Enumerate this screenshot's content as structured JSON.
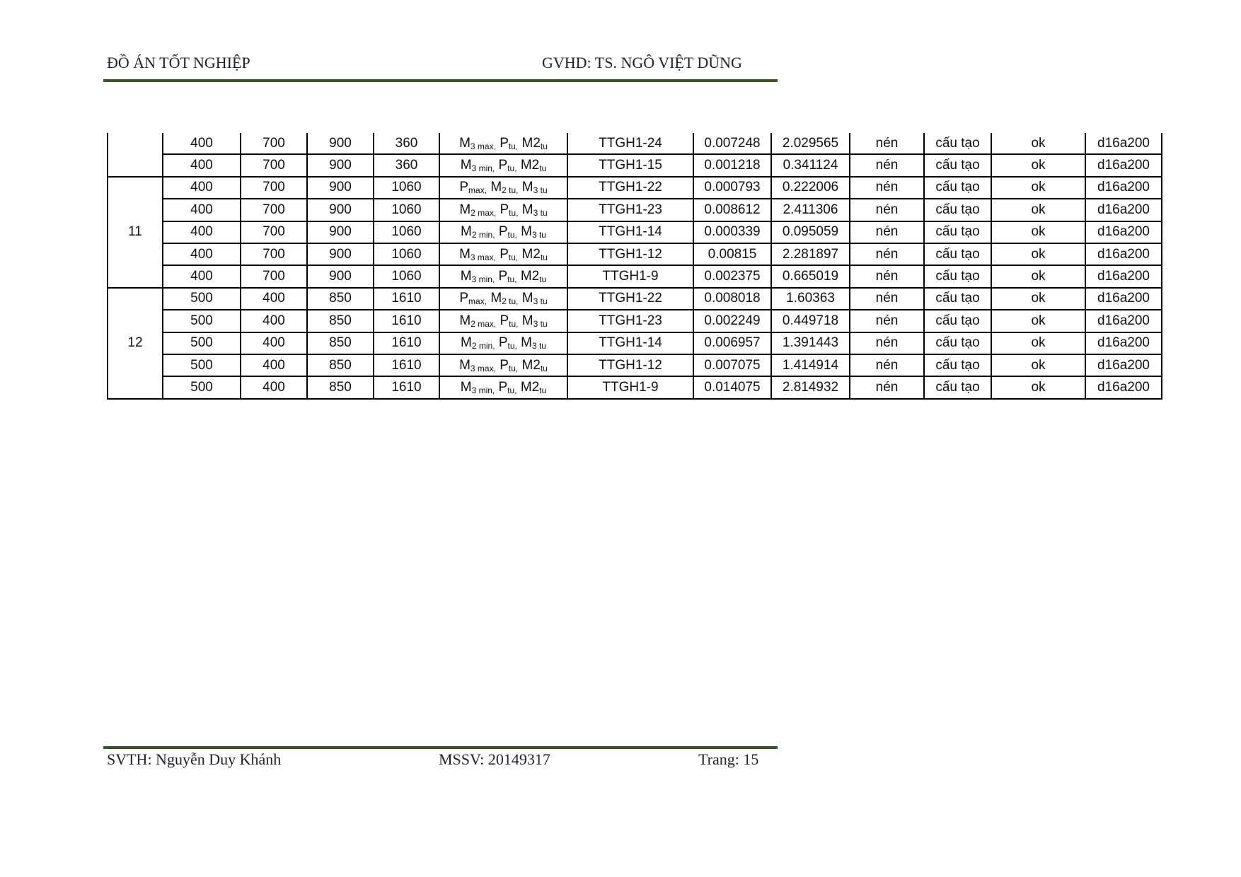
{
  "header": {
    "left": "ĐỒ ÁN TỐT NGHIỆP",
    "right": "GVHD: TS. NGÔ VIỆT DŨNG"
  },
  "footer": {
    "student": "SVTH: Nguyễn Duy Khánh",
    "id": "MSSV: 20149317",
    "page": "Trang: 15"
  },
  "colors": {
    "rule": "#3d5526"
  },
  "table": {
    "groups": [
      {
        "label": "",
        "rows": [
          [
            "400",
            "700",
            "900",
            "360",
            [
              [
                "M",
                "3 max,"
              ],
              [
                "P",
                "tu,"
              ],
              [
                "M2",
                "tu"
              ]
            ],
            "TTGH1-24",
            "0.007248",
            "2.029565",
            "nén",
            "cấu tạo",
            "ok",
            "d16a200"
          ],
          [
            "400",
            "700",
            "900",
            "360",
            [
              [
                "M",
                "3 min,"
              ],
              [
                "P",
                "tu,"
              ],
              [
                "M2",
                "tu"
              ]
            ],
            "TTGH1-15",
            "0.001218",
            "0.341124",
            "nén",
            "cấu tạo",
            "ok",
            "d16a200"
          ]
        ]
      },
      {
        "label": "11",
        "rows": [
          [
            "400",
            "700",
            "900",
            "1060",
            [
              [
                "P",
                "max,"
              ],
              [
                "M",
                "2 tu,"
              ],
              [
                "M",
                "3 tu"
              ]
            ],
            "TTGH1-22",
            "0.000793",
            "0.222006",
            "nén",
            "cấu tạo",
            "ok",
            "d16a200"
          ],
          [
            "400",
            "700",
            "900",
            "1060",
            [
              [
                "M",
                "2 max,"
              ],
              [
                "P",
                "tu,"
              ],
              [
                "M",
                "3 tu"
              ]
            ],
            "TTGH1-23",
            "0.008612",
            "2.411306",
            "nén",
            "cấu tạo",
            "ok",
            "d16a200"
          ],
          [
            "400",
            "700",
            "900",
            "1060",
            [
              [
                "M",
                "2 min,"
              ],
              [
                "P",
                "tu,"
              ],
              [
                "M",
                "3 tu"
              ]
            ],
            "TTGH1-14",
            "0.000339",
            "0.095059",
            "nén",
            "cấu tạo",
            "ok",
            "d16a200"
          ],
          [
            "400",
            "700",
            "900",
            "1060",
            [
              [
                "M",
                "3 max,"
              ],
              [
                "P",
                "tu,"
              ],
              [
                "M2",
                "tu"
              ]
            ],
            "TTGH1-12",
            "0.00815",
            "2.281897",
            "nén",
            "cấu tạo",
            "ok",
            "d16a200"
          ],
          [
            "400",
            "700",
            "900",
            "1060",
            [
              [
                "M",
                "3 min,"
              ],
              [
                "P",
                "tu,"
              ],
              [
                "M2",
                "tu"
              ]
            ],
            "TTGH1-9",
            "0.002375",
            "0.665019",
            "nén",
            "cấu tạo",
            "ok",
            "d16a200"
          ]
        ]
      },
      {
        "label": "12",
        "rows": [
          [
            "500",
            "400",
            "850",
            "1610",
            [
              [
                "P",
                "max,"
              ],
              [
                "M",
                "2 tu,"
              ],
              [
                "M",
                "3 tu"
              ]
            ],
            "TTGH1-22",
            "0.008018",
            "1.60363",
            "nén",
            "cấu tạo",
            "ok",
            "d16a200"
          ],
          [
            "500",
            "400",
            "850",
            "1610",
            [
              [
                "M",
                "2 max,"
              ],
              [
                "P",
                "tu,"
              ],
              [
                "M",
                "3 tu"
              ]
            ],
            "TTGH1-23",
            "0.002249",
            "0.449718",
            "nén",
            "cấu tạo",
            "ok",
            "d16a200"
          ],
          [
            "500",
            "400",
            "850",
            "1610",
            [
              [
                "M",
                "2 min,"
              ],
              [
                "P",
                "tu,"
              ],
              [
                "M",
                "3 tu"
              ]
            ],
            "TTGH1-14",
            "0.006957",
            "1.391443",
            "nén",
            "cấu tạo",
            "ok",
            "d16a200"
          ],
          [
            "500",
            "400",
            "850",
            "1610",
            [
              [
                "M",
                "3 max,"
              ],
              [
                "P",
                "tu,"
              ],
              [
                "M2",
                "tu"
              ]
            ],
            "TTGH1-12",
            "0.007075",
            "1.414914",
            "nén",
            "cấu tạo",
            "ok",
            "d16a200"
          ],
          [
            "500",
            "400",
            "850",
            "1610",
            [
              [
                "M",
                "3 min,"
              ],
              [
                "P",
                "tu,"
              ],
              [
                "M2",
                "tu"
              ]
            ],
            "TTGH1-9",
            "0.014075",
            "2.814932",
            "nén",
            "cấu tạo",
            "ok",
            "d16a200"
          ]
        ]
      }
    ]
  }
}
